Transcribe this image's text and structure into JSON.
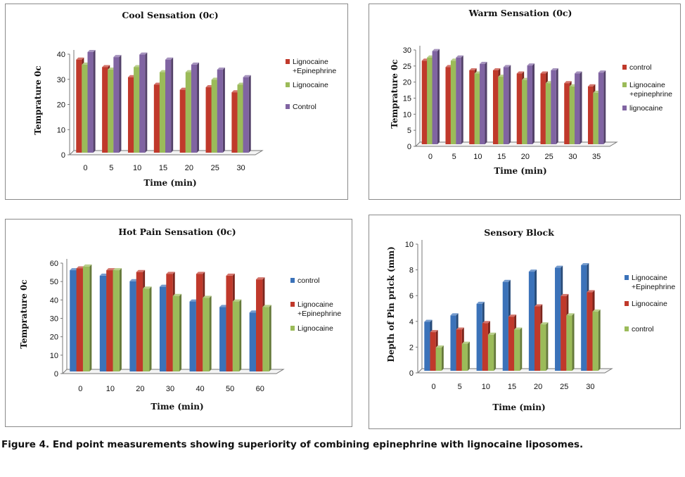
{
  "caption": "Figure 4. End point measurements showing superiority of combining epinephrine with lignocaine liposomes.",
  "colors": {
    "red": "#c0392b",
    "green": "#9bbb59",
    "purple": "#8064a2",
    "blue": "#3b72b9"
  },
  "chart_data": [
    {
      "type": "bar",
      "title": "Cool Sensation (0c)",
      "xlabel": "Time (min)",
      "ylabel": "Temprature 0c",
      "categories": [
        "0",
        "5",
        "10",
        "15",
        "20",
        "25",
        "30"
      ],
      "ylim": [
        0,
        40
      ],
      "yticks": [
        0,
        10,
        20,
        30,
        40
      ],
      "legend_position": "right",
      "series": [
        {
          "name": "Lignocaine +Epinephrine",
          "legend_lines": [
            "Lignocaine",
            "+Epinephrine"
          ],
          "color": "#c0392b",
          "values": [
            37,
            34,
            30,
            27,
            25,
            26,
            24
          ]
        },
        {
          "name": "Lignocaine",
          "legend_lines": [
            "Lignocaine"
          ],
          "color": "#9bbb59",
          "values": [
            35,
            33,
            34,
            32,
            32,
            29,
            27
          ]
        },
        {
          "name": "Control",
          "legend_lines": [
            "Control"
          ],
          "color": "#8064a2",
          "values": [
            40,
            38,
            39,
            37,
            35,
            33,
            30
          ]
        }
      ]
    },
    {
      "type": "bar",
      "title": "Warm Sensation (0c)",
      "xlabel": "Time (min)",
      "ylabel": "Temprature 0c",
      "categories": [
        "0",
        "5",
        "10",
        "15",
        "20",
        "25",
        "30",
        "35"
      ],
      "ylim": [
        0,
        30
      ],
      "yticks": [
        0,
        5,
        10,
        15,
        20,
        25,
        30
      ],
      "legend_position": "right",
      "series": [
        {
          "name": "control",
          "legend_lines": [
            "control"
          ],
          "color": "#c0392b",
          "values": [
            26,
            24,
            23,
            23,
            22,
            22,
            19,
            18
          ]
        },
        {
          "name": "Lignocaine +epinephrine",
          "legend_lines": [
            "Lignocaine",
            "+epinephrine"
          ],
          "color": "#9bbb59",
          "values": [
            27,
            26,
            22,
            21,
            20,
            19,
            18,
            16
          ]
        },
        {
          "name": "lignocaine",
          "legend_lines": [
            "lignocaine"
          ],
          "color": "#8064a2",
          "values": [
            29,
            27,
            25,
            24,
            24.5,
            23,
            22,
            22.3
          ]
        }
      ]
    },
    {
      "type": "bar",
      "title": "Hot Pain Sensation (0c)",
      "xlabel": "Time (min)",
      "ylabel": "Temprature 0c",
      "categories": [
        "0",
        "10",
        "20",
        "30",
        "40",
        "50",
        "60"
      ],
      "ylim": [
        0,
        60
      ],
      "yticks": [
        0,
        10,
        20,
        30,
        40,
        50,
        60
      ],
      "legend_position": "right",
      "series": [
        {
          "name": "control",
          "legend_lines": [
            "control"
          ],
          "color": "#3b72b9",
          "values": [
            55,
            52,
            49,
            46,
            38,
            35,
            32
          ]
        },
        {
          "name": "Lignocaine +Epinephrine",
          "legend_lines": [
            "Lignocaine",
            "+Epinephrine"
          ],
          "color": "#c0392b",
          "values": [
            56,
            55,
            54,
            53,
            53,
            52,
            50
          ]
        },
        {
          "name": "Lignocaine",
          "legend_lines": [
            "Lignocaine"
          ],
          "color": "#9bbb59",
          "values": [
            57,
            55,
            45,
            41,
            40,
            38,
            35
          ]
        }
      ]
    },
    {
      "type": "bar",
      "title": "Sensory Block",
      "xlabel": "Time (min)",
      "ylabel": "Depth of Pin prick (mm)",
      "categories": [
        "0",
        "5",
        "10",
        "15",
        "20",
        "25",
        "30"
      ],
      "ylim": [
        0,
        10
      ],
      "yticks": [
        0,
        2,
        4,
        6,
        8,
        10
      ],
      "legend_position": "right",
      "series": [
        {
          "name": "Lignocaine +Epinephrine",
          "legend_lines": [
            "Lignocaine",
            "+Epinephrine"
          ],
          "color": "#3b72b9",
          "values": [
            3.8,
            4.3,
            5.2,
            6.9,
            7.7,
            8.0,
            8.2
          ]
        },
        {
          "name": "Lignocaine",
          "legend_lines": [
            "Lignocaine"
          ],
          "color": "#c0392b",
          "values": [
            3.0,
            3.2,
            3.7,
            4.2,
            5.0,
            5.8,
            6.1
          ]
        },
        {
          "name": "control",
          "legend_lines": [
            "control"
          ],
          "color": "#9bbb59",
          "values": [
            1.8,
            2.1,
            2.8,
            3.2,
            3.6,
            4.3,
            4.6
          ]
        }
      ]
    }
  ]
}
